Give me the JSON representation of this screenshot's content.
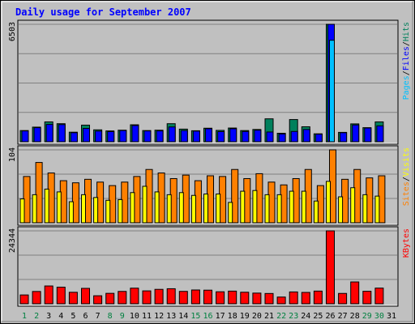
{
  "chart_data": {
    "type": "bar",
    "title": "Daily usage for September 2007",
    "categories": [
      "1",
      "2",
      "3",
      "4",
      "5",
      "6",
      "7",
      "8",
      "9",
      "10",
      "11",
      "12",
      "13",
      "14",
      "15",
      "16",
      "17",
      "18",
      "19",
      "20",
      "21",
      "22",
      "23",
      "24",
      "25",
      "26",
      "27",
      "28",
      "29",
      "30",
      "31"
    ],
    "weekend_days": [
      "1",
      "2",
      "8",
      "9",
      "15",
      "16",
      "22",
      "23",
      "29",
      "30"
    ],
    "colors": {
      "background": "#c0c0c0",
      "title": "#0000ff",
      "day_normal": "#000000",
      "day_weekend": "#008040",
      "hits": "#00805c",
      "files": "#0000ff",
      "pages": "#00c0ff",
      "visits": "#ffff00",
      "sites": "#ff8000",
      "kbytes": "#ff0000"
    },
    "panels": [
      {
        "id": "hits-files-pages",
        "ymax_label": "6503",
        "ymax": 6503,
        "gridlines": 4,
        "legend": [
          {
            "label": "Pages",
            "color": "#00c0ff"
          },
          {
            "label": "/",
            "color": "#000000"
          },
          {
            "label": "Files",
            "color": "#0000ff"
          },
          {
            "label": "/",
            "color": "#000000"
          },
          {
            "label": "Hits",
            "color": "#00805c"
          }
        ],
        "series": [
          {
            "name": "Hits",
            "color": "#00805c",
            "values": [
              620,
              810,
              1100,
              1000,
              530,
              920,
              660,
              600,
              640,
              940,
              620,
              640,
              1000,
              700,
              610,
              750,
              630,
              760,
              620,
              680,
              1270,
              470,
              1230,
              830,
              440,
              6503,
              520,
              990,
              780,
              1100,
              0
            ]
          },
          {
            "name": "Files",
            "color": "#0000ff",
            "values": [
              600,
              780,
              960,
              950,
              500,
              740,
              590,
              560,
              620,
              900,
              600,
              600,
              820,
              620,
              590,
              720,
              560,
              720,
              570,
              640,
              540,
              430,
              570,
              680,
              420,
              6503,
              500,
              930,
              760,
              880,
              0
            ]
          },
          {
            "name": "Pages",
            "color": "#00c0ff",
            "values": [
              0,
              0,
              0,
              0,
              0,
              0,
              0,
              0,
              0,
              0,
              0,
              0,
              0,
              0,
              0,
              0,
              0,
              0,
              0,
              0,
              0,
              0,
              0,
              0,
              0,
              5620,
              0,
              0,
              0,
              0,
              0
            ]
          }
        ]
      },
      {
        "id": "visits-sites",
        "ymax_label": "104",
        "ymax": 104,
        "gridlines": 3,
        "legend": [
          {
            "label": "Sites",
            "color": "#ff8000"
          },
          {
            "label": "/",
            "color": "#000000"
          },
          {
            "label": "Visits",
            "color": "#ffff00"
          }
        ],
        "series": [
          {
            "name": "Sites",
            "color": "#ff8000",
            "values": [
              66,
              86,
              71,
              60,
              57,
              62,
              58,
              53,
              58,
              66,
              76,
              71,
              63,
              68,
              60,
              67,
              66,
              76,
              63,
              70,
              58,
              54,
              63,
              76,
              53,
              104,
              62,
              76,
              64,
              67,
              0
            ]
          },
          {
            "name": "Visits",
            "color": "#ffff00",
            "values": [
              34,
              40,
              48,
              44,
              30,
              40,
              36,
              32,
              33,
              43,
              52,
              44,
              40,
              43,
              39,
              41,
              41,
              29,
              45,
              46,
              40,
              40,
              45,
              45,
              31,
              59,
              37,
              50,
              40,
              38,
              0
            ]
          }
        ]
      },
      {
        "id": "kbytes",
        "ymax_label": "24344",
        "ymax": 24344,
        "gridlines": 3,
        "legend": [
          {
            "label": "KBytes",
            "color": "#ff0000"
          }
        ],
        "series": [
          {
            "name": "KBytes",
            "color": "#ff0000",
            "values": [
              2940,
              4100,
              5940,
              5540,
              3830,
              5140,
              2670,
              3480,
              4120,
              5210,
              4300,
              4810,
              5020,
              4130,
              4600,
              4540,
              4000,
              4220,
              3850,
              3560,
              3430,
              2240,
              3950,
              3790,
              4230,
              24344,
              3450,
              7290,
              4170,
              5230,
              0
            ]
          }
        ]
      }
    ]
  }
}
